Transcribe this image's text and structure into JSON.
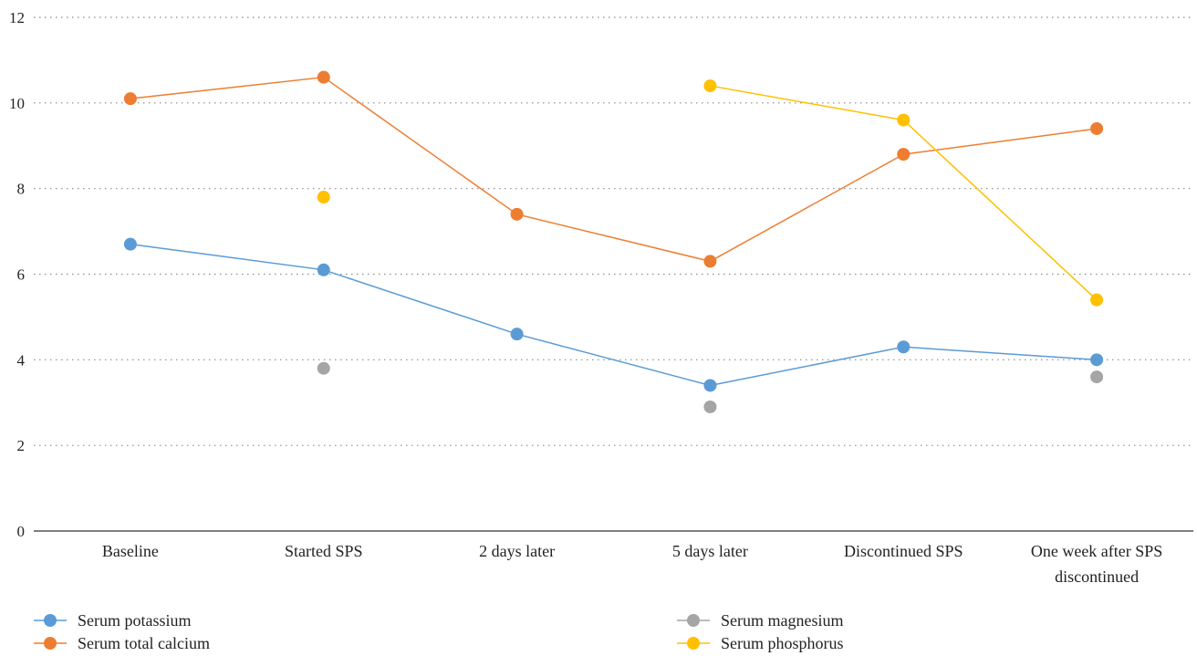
{
  "chart_data": {
    "type": "line",
    "title": "",
    "xlabel": "",
    "ylabel": "",
    "ylim": [
      0,
      12
    ],
    "yticks": [
      0,
      2,
      4,
      6,
      8,
      10,
      12
    ],
    "grid": true,
    "legend_position": "bottom",
    "categories": [
      [
        "Baseline"
      ],
      [
        "Started SPS"
      ],
      [
        "2 days later"
      ],
      [
        "5 days later"
      ],
      [
        "Discontinued SPS"
      ],
      [
        "One week after SPS",
        "discontinued"
      ]
    ],
    "series": [
      {
        "name": "Serum potassium",
        "color": "#5b9bd5",
        "values": [
          6.7,
          6.1,
          4.6,
          3.4,
          4.3,
          4.0
        ]
      },
      {
        "name": "Serum total calcium",
        "color": "#ed7d31",
        "values": [
          10.1,
          10.6,
          7.4,
          6.3,
          8.8,
          9.4
        ]
      },
      {
        "name": "Serum magnesium",
        "color": "#a5a5a5",
        "values": [
          null,
          3.8,
          null,
          2.9,
          null,
          3.6
        ]
      },
      {
        "name": "Serum phosphorus",
        "color": "#ffc000",
        "values": [
          null,
          7.8,
          null,
          10.4,
          9.6,
          5.4
        ]
      }
    ]
  }
}
